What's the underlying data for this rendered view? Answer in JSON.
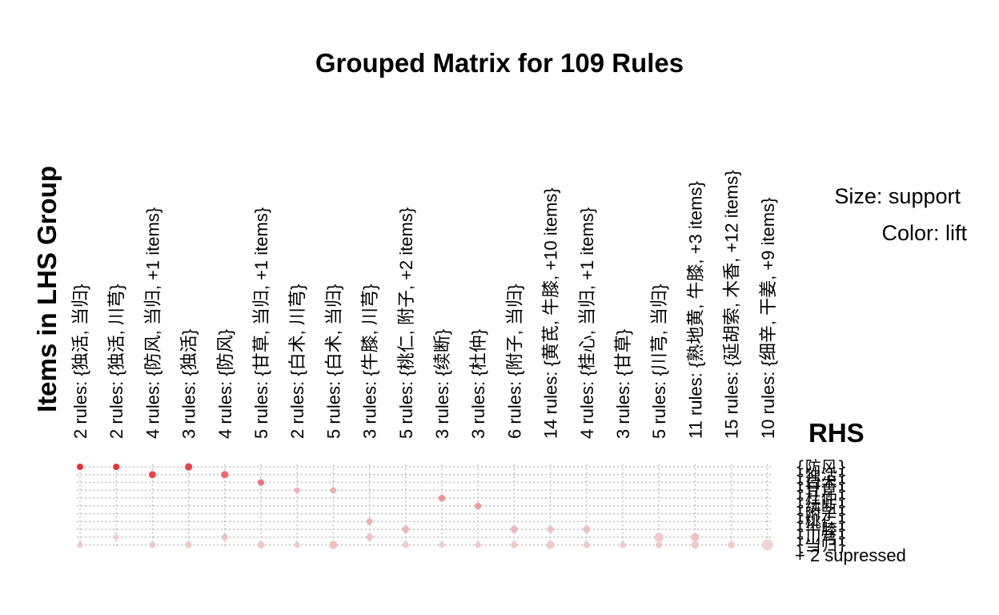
{
  "chart_data": {
    "type": "grouped_matrix",
    "title": "Grouped Matrix for 109 Rules",
    "ylabel": "Items in LHS Group",
    "rhs_title": "RHS",
    "legend": {
      "size": "Size: support",
      "color": "Color: lift"
    },
    "color_scale": {
      "low": "#f2e3e6",
      "high": "#e3343d"
    },
    "lhs_groups": [
      "2 rules: {独活, 当归}",
      "2 rules: {独活, 川芎}",
      "4 rules: {防风, 当归, +1 items}",
      "3 rules: {独活}",
      "4 rules: {防风}",
      "5 rules: {甘草, 当归, +1 items}",
      "2 rules: {白术, 川芎}",
      "5 rules: {白术, 当归}",
      "3 rules: {牛膝, 川芎}",
      "5 rules: {桃仁, 附子, +2 items}",
      "3 rules: {续断}",
      "3 rules: {杜仲}",
      "6 rules: {附子, 当归}",
      "14 rules: {黄芪, 牛膝, +10 items}",
      "4 rules: {桂心, 当归, +1 items}",
      "3 rules: {甘草}",
      "5 rules: {川芎, 当归}",
      "11 rules: {熟地黄, 牛膝, +3 items}",
      "15 rules: {延胡索, 木香, +12 items}",
      "10 rules: {细辛, 干姜, +9 items}"
    ],
    "rhs_items": [
      "{防风}",
      "{独活}",
      "{白术}",
      "{甘草}",
      "{杜仲}",
      "{续断}",
      "{附子}",
      "{桃仁}",
      "{牛膝}",
      "{川芎}",
      "{当归}"
    ],
    "rhs_suppressed": "+ 2 supressed",
    "cells": [
      {
        "lhs": 0,
        "rhs": 0,
        "support": 0.6,
        "lift": 1.0
      },
      {
        "lhs": 0,
        "rhs": 10,
        "support": 0.4,
        "lift": 0.15
      },
      {
        "lhs": 1,
        "rhs": 0,
        "support": 0.6,
        "lift": 1.0
      },
      {
        "lhs": 1,
        "rhs": 9,
        "support": 0.3,
        "lift": 0.15
      },
      {
        "lhs": 2,
        "rhs": 1,
        "support": 0.8,
        "lift": 0.9
      },
      {
        "lhs": 2,
        "rhs": 10,
        "support": 0.5,
        "lift": 0.15
      },
      {
        "lhs": 3,
        "rhs": 0,
        "support": 0.9,
        "lift": 0.9
      },
      {
        "lhs": 3,
        "rhs": 10,
        "support": 0.6,
        "lift": 0.15
      },
      {
        "lhs": 4,
        "rhs": 1,
        "support": 0.9,
        "lift": 0.7
      },
      {
        "lhs": 4,
        "rhs": 9,
        "support": 0.5,
        "lift": 0.2
      },
      {
        "lhs": 5,
        "rhs": 2,
        "support": 0.6,
        "lift": 0.6
      },
      {
        "lhs": 5,
        "rhs": 10,
        "support": 0.8,
        "lift": 0.15
      },
      {
        "lhs": 6,
        "rhs": 3,
        "support": 0.4,
        "lift": 0.3
      },
      {
        "lhs": 6,
        "rhs": 10,
        "support": 0.4,
        "lift": 0.15
      },
      {
        "lhs": 7,
        "rhs": 3,
        "support": 0.5,
        "lift": 0.3
      },
      {
        "lhs": 7,
        "rhs": 10,
        "support": 1.2,
        "lift": 0.2
      },
      {
        "lhs": 8,
        "rhs": 7,
        "support": 0.5,
        "lift": 0.3
      },
      {
        "lhs": 8,
        "rhs": 9,
        "support": 0.6,
        "lift": 0.2
      },
      {
        "lhs": 9,
        "rhs": 8,
        "support": 0.7,
        "lift": 0.25
      },
      {
        "lhs": 9,
        "rhs": 10,
        "support": 0.5,
        "lift": 0.15
      },
      {
        "lhs": 10,
        "rhs": 4,
        "support": 0.7,
        "lift": 0.45
      },
      {
        "lhs": 10,
        "rhs": 10,
        "support": 0.4,
        "lift": 0.15
      },
      {
        "lhs": 11,
        "rhs": 5,
        "support": 0.6,
        "lift": 0.4
      },
      {
        "lhs": 11,
        "rhs": 10,
        "support": 0.4,
        "lift": 0.15
      },
      {
        "lhs": 12,
        "rhs": 8,
        "support": 0.8,
        "lift": 0.25
      },
      {
        "lhs": 12,
        "rhs": 10,
        "support": 0.6,
        "lift": 0.15
      },
      {
        "lhs": 13,
        "rhs": 10,
        "support": 1.2,
        "lift": 0.15
      },
      {
        "lhs": 13,
        "rhs": 8,
        "support": 0.6,
        "lift": 0.2
      },
      {
        "lhs": 14,
        "rhs": 8,
        "support": 0.8,
        "lift": 0.2
      },
      {
        "lhs": 14,
        "rhs": 10,
        "support": 0.6,
        "lift": 0.15
      },
      {
        "lhs": 15,
        "rhs": 10,
        "support": 0.5,
        "lift": 0.15
      },
      {
        "lhs": 16,
        "rhs": 9,
        "support": 1.6,
        "lift": 0.15
      },
      {
        "lhs": 16,
        "rhs": 10,
        "support": 0.6,
        "lift": 0.15
      },
      {
        "lhs": 17,
        "rhs": 9,
        "support": 1.2,
        "lift": 0.2
      },
      {
        "lhs": 17,
        "rhs": 10,
        "support": 1.0,
        "lift": 0.15
      },
      {
        "lhs": 18,
        "rhs": 10,
        "support": 0.7,
        "lift": 0.15
      },
      {
        "lhs": 19,
        "rhs": 10,
        "support": 2.8,
        "lift": 0.1
      }
    ]
  }
}
